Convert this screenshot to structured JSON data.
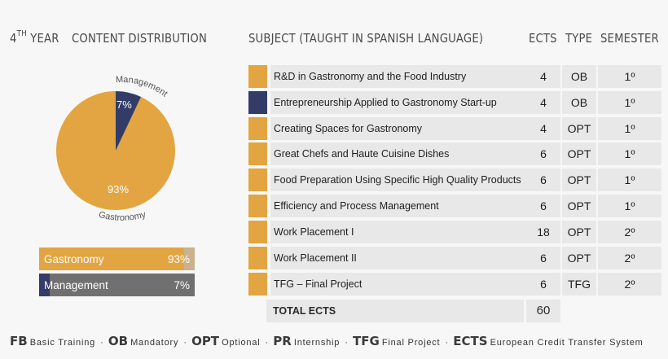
{
  "colors": {
    "gastronomy": "#e2a542",
    "management": "#333c67",
    "cell_bg": "#e8e8e8",
    "bar_rest_gastro": "#c9b28c",
    "bar_rest_mgmt": "#707070"
  },
  "header": {
    "year_num": "4",
    "year_sup": "TH",
    "year_word": "YEAR",
    "content": "CONTENT DISTRIBUTION",
    "subject": "SUBJECT (TAUGHT IN SPANISH LANGUAGE)",
    "ects": "ECTS",
    "type": "TYPE",
    "semester": "SEMESTER"
  },
  "chart_data": {
    "type": "pie",
    "slices": [
      {
        "name": "Gastronomy",
        "value": 93,
        "label": "93%",
        "color": "#e2a542"
      },
      {
        "name": "Management",
        "value": 7,
        "label": "7%",
        "color": "#333c67"
      }
    ],
    "outer_labels": [
      "Management",
      "Gastronomy"
    ]
  },
  "bars": [
    {
      "name": "Gastronomy",
      "value_label": "93%",
      "fraction": 0.93
    },
    {
      "name": "Management",
      "value_label": "7%",
      "fraction": 0.07
    }
  ],
  "subjects": [
    {
      "name": "R&D in Gastronomy and the Food Industry",
      "ects": "4",
      "type": "OB",
      "semester": "1º",
      "area": "gastronomy"
    },
    {
      "name": "Entrepreneurship Applied to Gastronomy Start-up",
      "ects": "4",
      "type": "OB",
      "semester": "1º",
      "area": "management"
    },
    {
      "name": "Creating Spaces for Gastronomy",
      "ects": "4",
      "type": "OPT",
      "semester": "1º",
      "area": "gastronomy"
    },
    {
      "name": "Great Chefs and Haute Cuisine Dishes",
      "ects": "6",
      "type": "OPT",
      "semester": "1º",
      "area": "gastronomy"
    },
    {
      "name": "Food Preparation Using Specific High Quality Products",
      "ects": "6",
      "type": "OPT",
      "semester": "1º",
      "area": "gastronomy"
    },
    {
      "name": "Efficiency and Process Management",
      "ects": "6",
      "type": "OPT",
      "semester": "1º",
      "area": "gastronomy"
    },
    {
      "name": "Work Placement I",
      "ects": "18",
      "type": "OPT",
      "semester": "2º",
      "area": "gastronomy"
    },
    {
      "name": "Work Placement II",
      "ects": "6",
      "type": "OPT",
      "semester": "2º",
      "area": "gastronomy"
    },
    {
      "name": "TFG – Final Project",
      "ects": "6",
      "type": "TFG",
      "semester": "2º",
      "area": "gastronomy"
    }
  ],
  "total": {
    "label": "TOTAL ECTS",
    "value": "60"
  },
  "legend": [
    {
      "abbr": "FB",
      "desc": "Basic Training"
    },
    {
      "abbr": "OB",
      "desc": "Mandatory"
    },
    {
      "abbr": "OPT",
      "desc": "Optional"
    },
    {
      "abbr": "PR",
      "desc": "Internship"
    },
    {
      "abbr": "TFG",
      "desc": "Final Project"
    },
    {
      "abbr": "ECTS",
      "desc": "European Credit Transfer System"
    }
  ]
}
